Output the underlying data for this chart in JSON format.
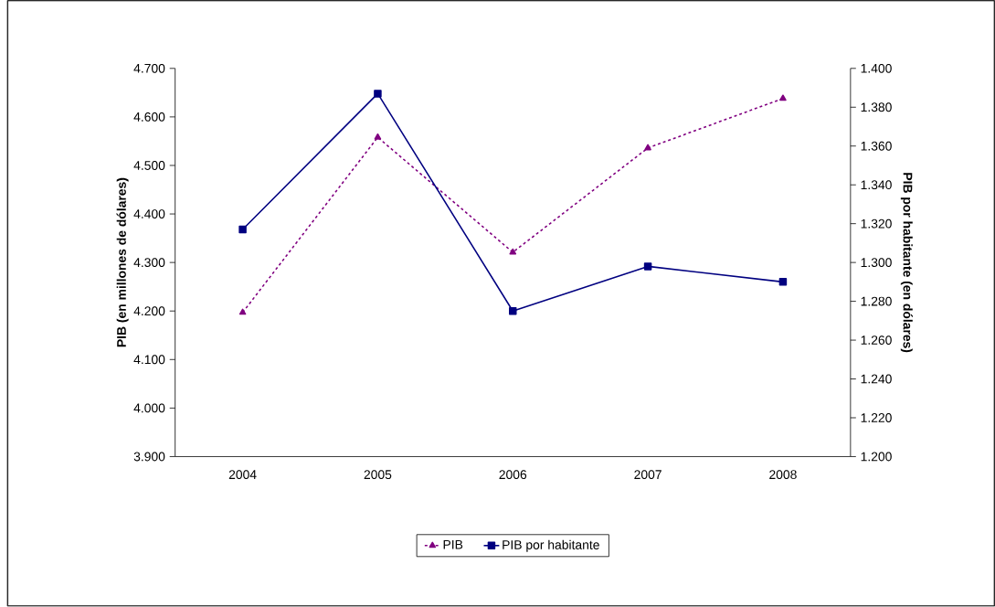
{
  "chart_data": {
    "type": "line",
    "categories": [
      "2004",
      "2005",
      "2006",
      "2007",
      "2008"
    ],
    "ylabel": "PIB (en millones de dólares)",
    "y2label": "PIB por habitante  (en dólares)",
    "ylim": [
      3900,
      4700
    ],
    "yticks": [
      {
        "value": 3900,
        "label": "3.900"
      },
      {
        "value": 4000,
        "label": "4.000"
      },
      {
        "value": 4100,
        "label": "4.100"
      },
      {
        "value": 4200,
        "label": "4.200"
      },
      {
        "value": 4300,
        "label": "4.300"
      },
      {
        "value": 4400,
        "label": "4.400"
      },
      {
        "value": 4500,
        "label": "4.500"
      },
      {
        "value": 4600,
        "label": "4.600"
      },
      {
        "value": 4700,
        "label": "4.700"
      }
    ],
    "y2lim": [
      1200,
      1400
    ],
    "y2ticks": [
      {
        "value": 1200,
        "label": "1.200"
      },
      {
        "value": 1220,
        "label": "1.220"
      },
      {
        "value": 1240,
        "label": "1.240"
      },
      {
        "value": 1260,
        "label": "1.260"
      },
      {
        "value": 1280,
        "label": "1.280"
      },
      {
        "value": 1300,
        "label": "1.300"
      },
      {
        "value": 1320,
        "label": "1.320"
      },
      {
        "value": 1340,
        "label": "1.340"
      },
      {
        "value": 1360,
        "label": "1.360"
      },
      {
        "value": 1380,
        "label": "1.380"
      },
      {
        "value": 1400,
        "label": "1.400"
      }
    ],
    "legend": "bottom",
    "series": [
      {
        "name": "PIB",
        "color": "#800080",
        "marker": "triangle",
        "line_style": "dashed",
        "values": [
          4197,
          4558,
          4321,
          4536,
          4638
        ]
      },
      {
        "name": "PIB por habitante",
        "color": "#000080",
        "marker": "square",
        "line_style": "solid",
        "axis": "y2",
        "values": [
          1317,
          1387,
          1275,
          1298,
          1290
        ]
      }
    ]
  }
}
